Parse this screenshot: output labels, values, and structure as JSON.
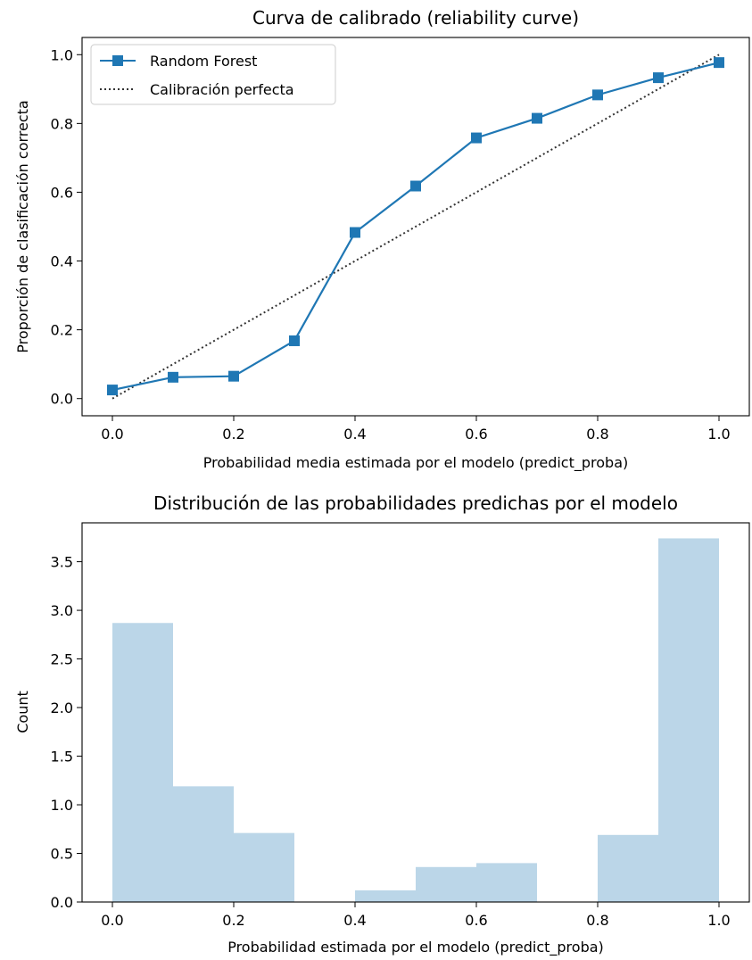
{
  "chart_data": [
    {
      "type": "line",
      "title": "Curva de calibrado (reliability curve)",
      "xlabel": "Probabilidad media estimada por el modelo (predict_proba)",
      "ylabel": "Proporción de clasificación correcta",
      "xlim": [
        -0.05,
        1.05
      ],
      "ylim": [
        -0.05,
        1.05
      ],
      "xticks": [
        "0.0",
        "0.2",
        "0.4",
        "0.6",
        "0.8",
        "1.0"
      ],
      "yticks": [
        "0.0",
        "0.2",
        "0.4",
        "0.6",
        "0.8",
        "1.0"
      ],
      "legend_position": "top-left",
      "grid": false,
      "series": [
        {
          "name": "Random Forest",
          "color": "#1f77b4",
          "marker": "square",
          "x": [
            0.0,
            0.1,
            0.2,
            0.3,
            0.4,
            0.5,
            0.6,
            0.7,
            0.8,
            0.9,
            1.0
          ],
          "y": [
            0.025,
            0.062,
            0.065,
            0.168,
            0.483,
            0.618,
            0.758,
            0.815,
            0.883,
            0.933,
            0.977
          ]
        },
        {
          "name": "Calibración perfecta",
          "color": "#333333",
          "linestyle": "dotted",
          "x": [
            0.0,
            1.0
          ],
          "y": [
            0.0,
            1.0
          ]
        }
      ]
    },
    {
      "type": "bar",
      "subtype": "histogram",
      "title": "Distribución de las probabilidades predichas por el modelo",
      "xlabel": "Probabilidad estimada por el modelo (predict_proba)",
      "ylabel": "Count",
      "xlim": [
        -0.05,
        1.05
      ],
      "ylim": [
        0,
        3.9
      ],
      "xticks": [
        "0.0",
        "0.2",
        "0.4",
        "0.6",
        "0.8",
        "1.0"
      ],
      "yticks": [
        "0.0",
        "0.5",
        "1.0",
        "1.5",
        "2.0",
        "2.5",
        "3.0",
        "3.5"
      ],
      "grid": false,
      "color": "#1f77b4",
      "bin_edges": [
        0.0,
        0.1,
        0.2,
        0.3,
        0.4,
        0.5,
        0.6,
        0.7,
        0.8,
        0.9,
        1.0
      ],
      "values": [
        2.87,
        1.19,
        0.71,
        0.0,
        0.12,
        0.36,
        0.4,
        0.0,
        0.69,
        3.74
      ]
    }
  ]
}
